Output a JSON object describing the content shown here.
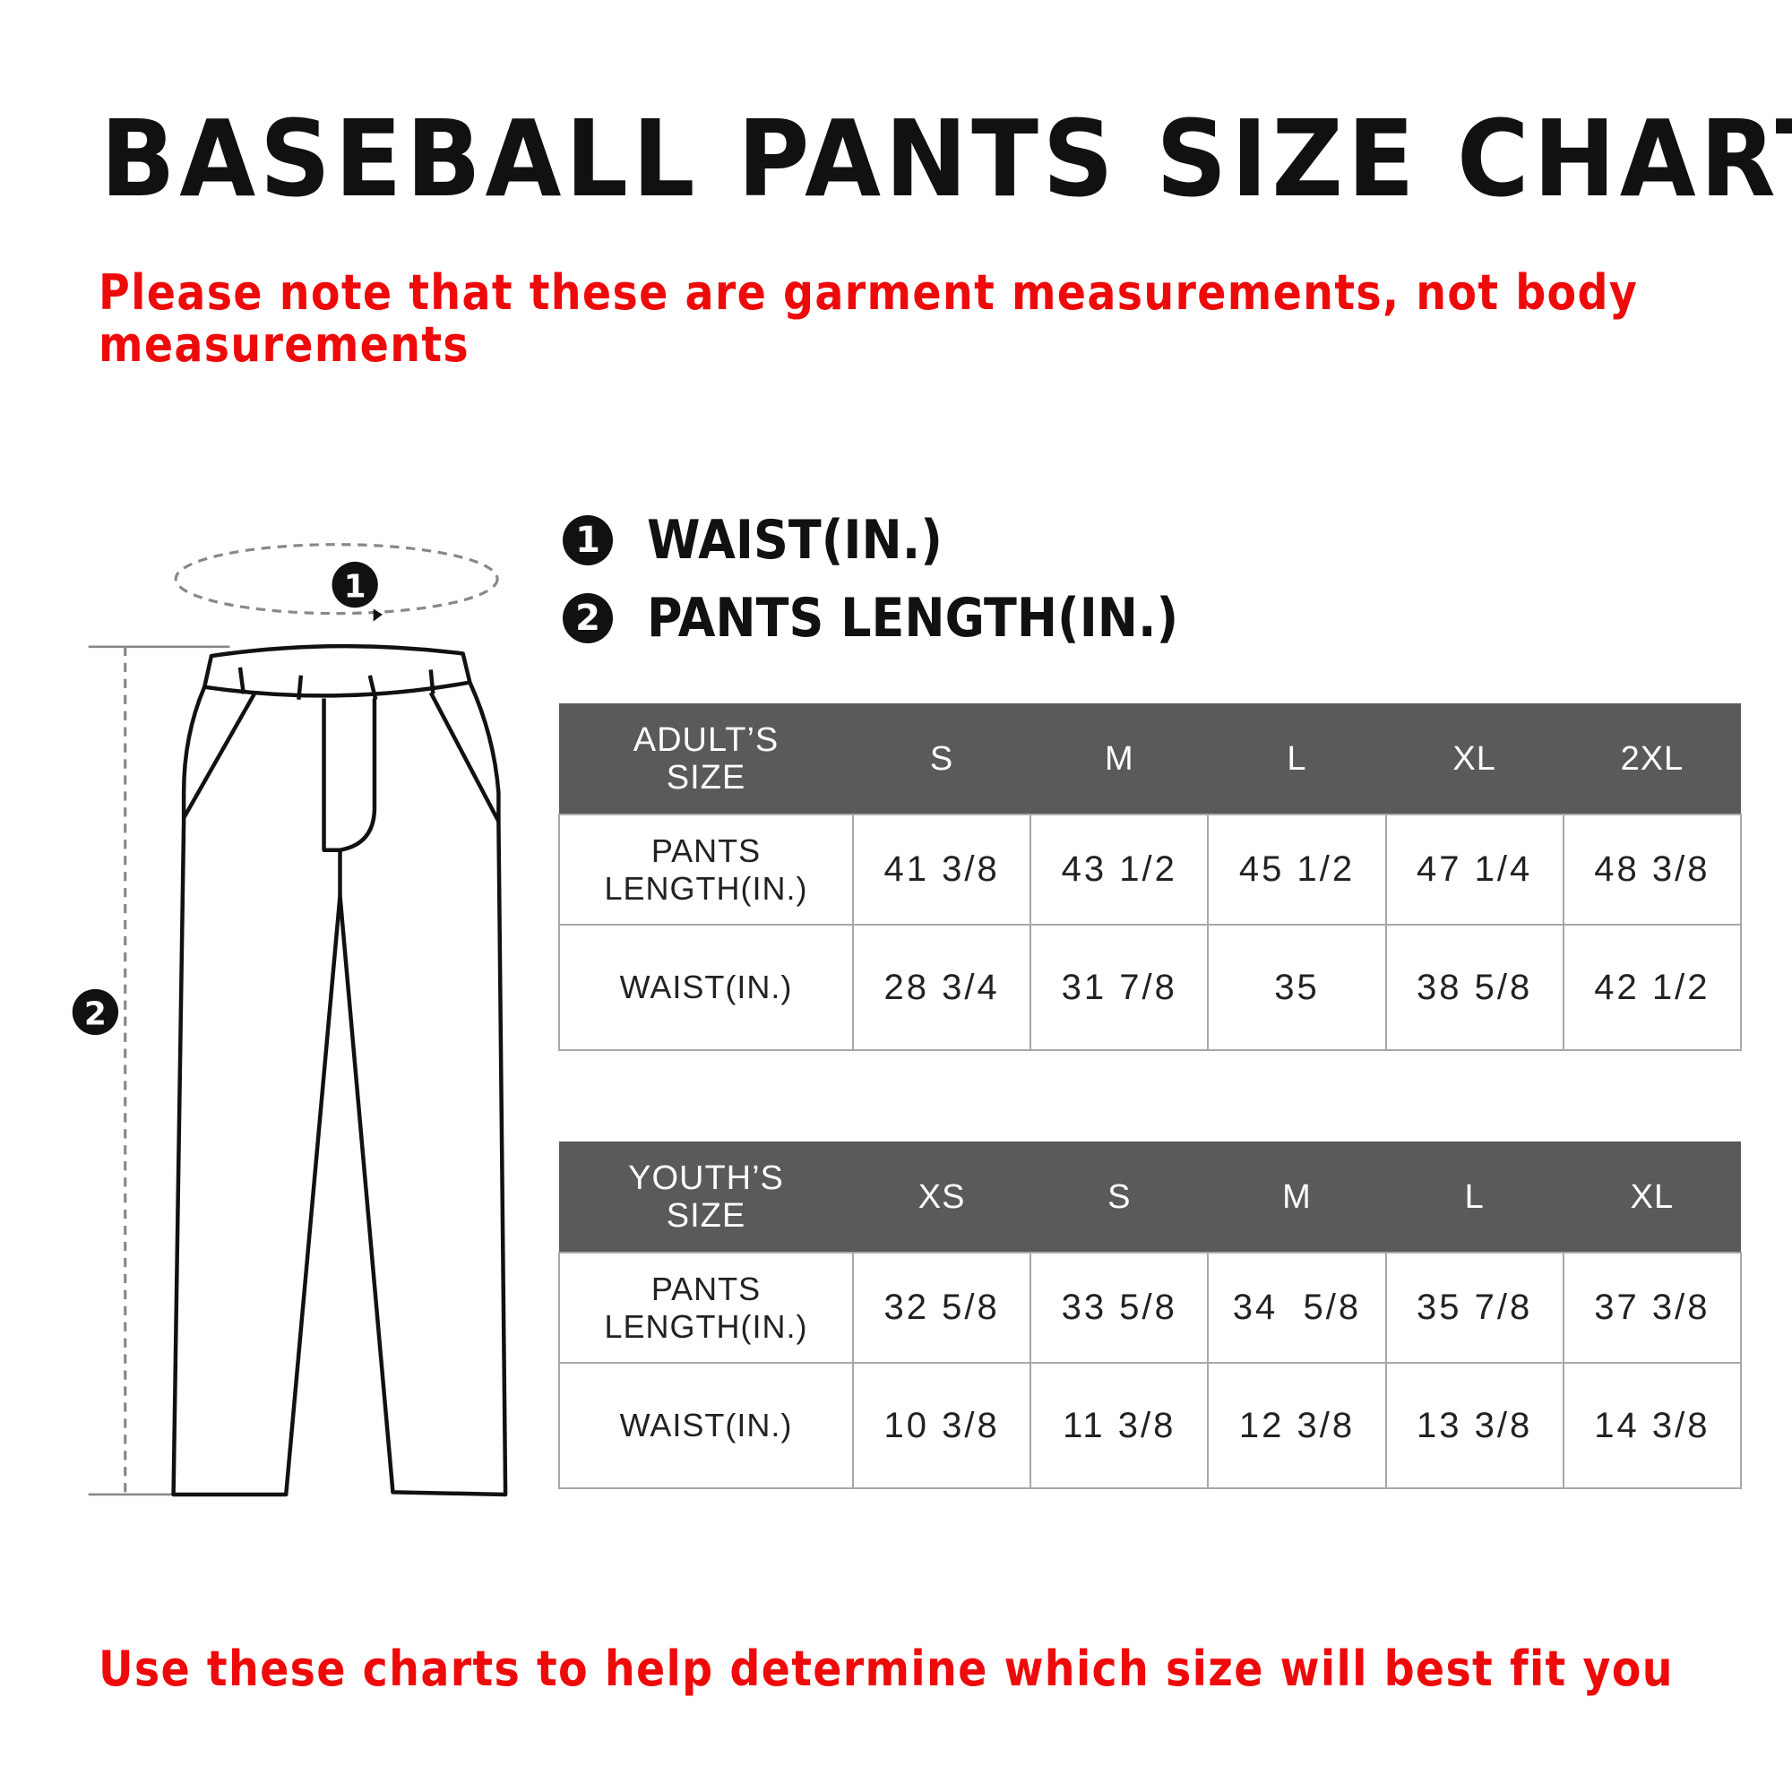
{
  "title": "BASEBALL PANTS SIZE CHART",
  "note_line1": "Please note that these are garment measurements, not body",
  "note_line2": "measurements",
  "legend": [
    {
      "num": "1",
      "label": "WAIST(IN.)"
    },
    {
      "num": "2",
      "label": "PANTS LENGTH(IN.)"
    }
  ],
  "adult_table": {
    "header": [
      "ADULT’S SIZE",
      "S",
      "M",
      "L",
      "XL",
      "2XL"
    ],
    "rows": [
      {
        "label": "PANTS LENGTH(IN.)",
        "values": [
          "41 3/8",
          "43 1/2",
          "45 1/2",
          "47 1/4",
          "48 3/8"
        ]
      },
      {
        "label": "WAIST(IN.)",
        "values": [
          "28 3/4",
          "31 7/8",
          "35",
          "38 5/8",
          "42 1/2"
        ]
      }
    ]
  },
  "youth_table": {
    "header": [
      "YOUTH’S SIZE",
      "XS",
      "S",
      "M",
      "L",
      "XL"
    ],
    "rows": [
      {
        "label": "PANTS LENGTH(IN.)",
        "values": [
          "32 5/8",
          "33 5/8",
          "34  5/8",
          "35 7/8",
          "37 3/8"
        ]
      },
      {
        "label": "WAIST(IN.)",
        "values": [
          "10 3/8",
          "11 3/8",
          "12 3/8",
          "13 3/8",
          "14 3/8"
        ]
      }
    ]
  },
  "diagram_markers": [
    "1",
    "2"
  ],
  "bottom_note": "Use these charts to help determine which size will best fit you",
  "colors": {
    "accent_red": "#ee0a0a",
    "header_bg": "#5a5a5a"
  }
}
